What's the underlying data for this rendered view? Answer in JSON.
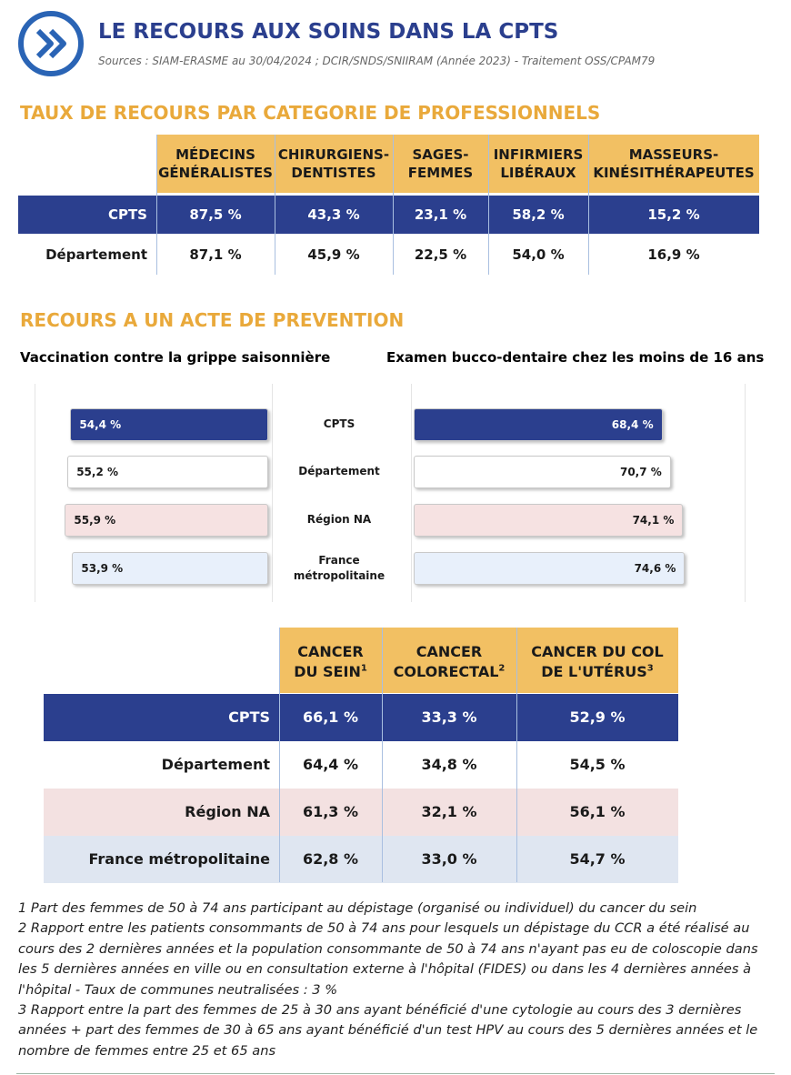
{
  "header": {
    "title": "LE RECOURS AUX SOINS DANS LA CPTS",
    "sources": "Sources : SIAM-ERASME au 30/04/2024 ; DCIR/SNDS/SNIIRAM (Année 2023) - Traitement OSS/CPAM79"
  },
  "professionals": {
    "title": "TAUX DE RECOURS PAR CATEGORIE DE PROFESSIONNELS",
    "columns": [
      "MÉDECINS GÉNÉRALISTES",
      "CHIRURGIENS-DENTISTES",
      "SAGES-FEMMES",
      "INFIRMIERS LIBÉRAUX",
      "MASSEURS-KINÉSITHÉRAPEUTES"
    ],
    "rows": [
      {
        "label": "CPTS",
        "cells": [
          "87,5 %",
          "43,3 %",
          "23,1 %",
          "58,2 %",
          "15,2 %"
        ]
      },
      {
        "label": "Département",
        "cells": [
          "87,1 %",
          "45,9 %",
          "22,5 %",
          "54,0 %",
          "16,9 %"
        ]
      }
    ]
  },
  "prevention": {
    "title": "RECOURS A UN ACTE DE PREVENTION"
  },
  "chart_data": {
    "type": "bar",
    "categories": [
      "CPTS",
      "Département",
      "Région NA",
      "France métropolitaine"
    ],
    "colors": [
      "#2b3f8e",
      "#ffffff",
      "#f6e2e2",
      "#e8f0fb"
    ],
    "xlim": [
      0,
      80
    ],
    "series": [
      {
        "name": "Vaccination contre la grippe saisonnière",
        "values": [
          54.4,
          55.2,
          55.9,
          53.9
        ],
        "value_labels": [
          "54,4 %",
          "55,2 %",
          "55,9 %",
          "53,9 %"
        ]
      },
      {
        "name": "Examen bucco-dentaire chez les moins de 16 ans",
        "values": [
          68.4,
          70.7,
          74.1,
          74.6
        ],
        "value_labels": [
          "68,4 %",
          "70,7 %",
          "74,1 %",
          "74,6 %"
        ]
      }
    ]
  },
  "screening": {
    "columns": [
      {
        "text": "CANCER DU SEIN",
        "note": "1"
      },
      {
        "text": "CANCER COLORECTAL",
        "note": "2"
      },
      {
        "text": "CANCER DU COL DE L'UTÉRUS",
        "note": "3"
      }
    ],
    "rows": [
      {
        "label": "CPTS",
        "cells": [
          "66,1 %",
          "33,3 %",
          "52,9 %"
        ]
      },
      {
        "label": "Département",
        "cells": [
          "64,4 %",
          "34,8 %",
          "54,5 %"
        ]
      },
      {
        "label": "Région NA",
        "cells": [
          "61,3 %",
          "32,1 %",
          "56,1 %"
        ]
      },
      {
        "label": "France métropolitaine",
        "cells": [
          "62,8 %",
          "33,0 %",
          "54,7 %"
        ]
      }
    ]
  },
  "footnotes": [
    "1 Part des femmes de 50 à 74 ans participant au dépistage (organisé ou individuel) du cancer du sein",
    "2 Rapport entre les patients consommants de 50 à 74 ans pour lesquels un dépistage du CCR a été réalisé au cours des 2 dernières années et la population consommante de 50 à 74 ans n'ayant pas eu de coloscopie dans les 5 dernières années en ville ou en consultation externe à l'hôpital (FIDES) ou dans les 4 dernières années à l'hôpital - Taux de communes neutralisées : 3 %",
    "3 Rapport entre la part des femmes de 25 à 30 ans ayant bénéficié d'une cytologie au cours des 3 dernières années + part des femmes de 30 à 65 ans ayant bénéficié d'un test HPV au cours des 5 dernières années et le nombre de femmes entre 25 et 65 ans"
  ]
}
